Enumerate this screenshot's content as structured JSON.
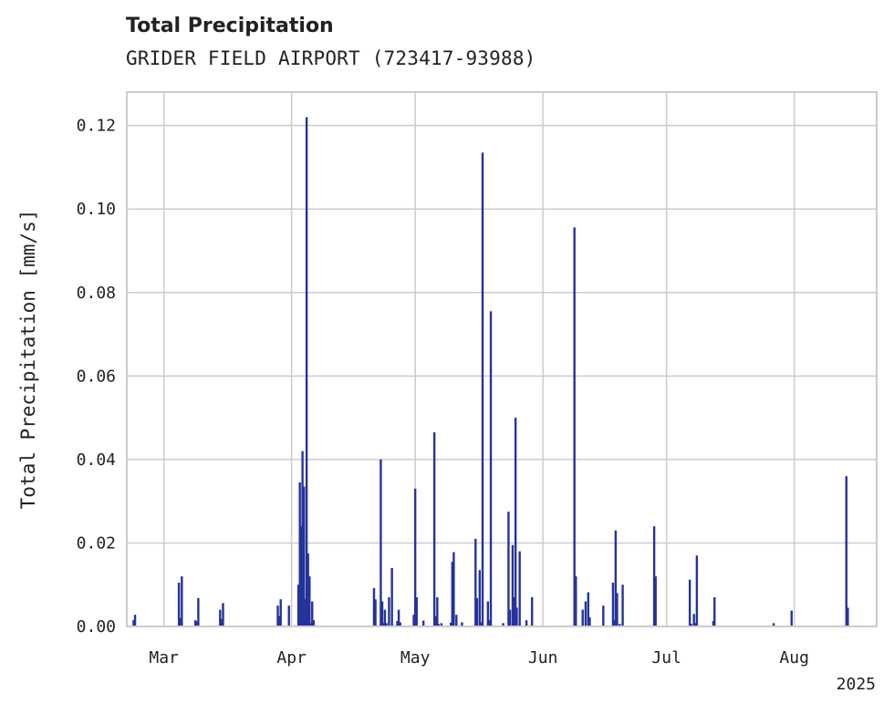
{
  "chart_data": {
    "type": "bar",
    "title": "Total Precipitation",
    "subtitle": "GRIDER FIELD AIRPORT (723417-93988)",
    "ylabel": "Total Precipitation [mm/s]",
    "xlabel": "",
    "x_axis_year_label": "2025",
    "ylim": [
      0,
      0.128
    ],
    "xlim": [
      "2025-02-20",
      "2025-08-21"
    ],
    "yticks": [
      {
        "value": 0.0,
        "label": "0.00"
      },
      {
        "value": 0.02,
        "label": "0.02"
      },
      {
        "value": 0.04,
        "label": "0.04"
      },
      {
        "value": 0.06,
        "label": "0.06"
      },
      {
        "value": 0.08,
        "label": "0.08"
      },
      {
        "value": 0.1,
        "label": "0.10"
      },
      {
        "value": 0.12,
        "label": "0.12"
      }
    ],
    "xticks": [
      {
        "date": "2025-03-01",
        "label": "Mar"
      },
      {
        "date": "2025-04-01",
        "label": "Apr"
      },
      {
        "date": "2025-05-01",
        "label": "May"
      },
      {
        "date": "2025-06-01",
        "label": "Jun"
      },
      {
        "date": "2025-07-01",
        "label": "Jul"
      },
      {
        "date": "2025-08-01",
        "label": "Aug"
      }
    ],
    "grid": true,
    "bar_color": "#26339a",
    "grid_color": "#cccccc",
    "x": [
      "2025-02-22",
      "2025-02-22",
      "2025-03-05",
      "2025-03-05",
      "2025-03-05",
      "2025-03-09",
      "2025-03-09",
      "2025-03-09",
      "2025-03-15",
      "2025-03-15",
      "2025-03-15",
      "2025-03-29",
      "2025-03-29",
      "2025-03-29",
      "2025-03-31",
      "2025-04-03",
      "2025-04-03",
      "2025-04-03",
      "2025-04-04",
      "2025-04-04",
      "2025-04-04",
      "2025-04-05",
      "2025-04-05",
      "2025-04-05",
      "2025-04-05",
      "2025-04-06",
      "2025-04-06",
      "2025-04-06",
      "2025-04-21",
      "2025-04-21",
      "2025-04-23",
      "2025-04-23",
      "2025-04-23",
      "2025-04-24",
      "2025-04-24",
      "2025-04-25",
      "2025-04-25",
      "2025-04-27",
      "2025-04-27",
      "2025-04-27",
      "2025-05-01",
      "2025-05-01",
      "2025-05-01",
      "2025-05-03",
      "2025-05-06",
      "2025-05-06",
      "2025-05-06",
      "2025-05-07",
      "2025-05-07",
      "2025-05-10",
      "2025-05-10",
      "2025-05-10",
      "2025-05-11",
      "2025-05-12",
      "2025-05-16",
      "2025-05-16",
      "2025-05-17",
      "2025-05-17",
      "2025-05-17",
      "2025-05-19",
      "2025-05-19",
      "2025-05-19",
      "2025-05-22",
      "2025-05-24",
      "2025-05-24",
      "2025-05-25",
      "2025-05-25",
      "2025-05-25",
      "2025-05-26",
      "2025-05-26",
      "2025-05-28",
      "2025-05-29",
      "2025-06-09",
      "2025-06-09",
      "2025-06-11",
      "2025-06-11",
      "2025-06-12",
      "2025-06-12",
      "2025-06-16",
      "2025-06-18",
      "2025-06-18",
      "2025-06-19",
      "2025-06-19",
      "2025-06-20",
      "2025-06-20",
      "2025-06-28",
      "2025-06-28",
      "2025-07-07",
      "2025-07-07",
      "2025-07-08",
      "2025-07-08",
      "2025-07-08",
      "2025-07-12",
      "2025-07-13",
      "2025-07-27",
      "2025-07-31",
      "2025-08-14",
      "2025-08-14"
    ],
    "values": [
      0.0015,
      0.0028,
      0.012,
      0.0105,
      0.002,
      0.0068,
      0.0015,
      0.0012,
      0.0056,
      0.004,
      0.0018,
      0.0065,
      0.005,
      0.0025,
      0.005,
      0.01,
      0.0345,
      0.024,
      0.042,
      0.0335,
      0.0065,
      0.122,
      0.0175,
      0.012,
      0.007,
      0.006,
      0.0015,
      0.0008,
      0.0092,
      0.0065,
      0.04,
      0.006,
      0.0008,
      0.004,
      0.0008,
      0.014,
      0.007,
      0.004,
      0.001,
      0.0013,
      0.033,
      0.007,
      0.0028,
      0.0014,
      0.007,
      0.0465,
      0.0025,
      0.0008,
      0.0006,
      0.0155,
      0.0178,
      0.0009,
      0.0028,
      0.001,
      0.021,
      0.0068,
      0.1135,
      0.0135,
      0.001,
      0.0755,
      0.006,
      0.0015,
      0.0008,
      0.0275,
      0.004,
      0.05,
      0.0195,
      0.007,
      0.018,
      0.0045,
      0.0015,
      0.007,
      0.0956,
      0.012,
      0.006,
      0.004,
      0.0082,
      0.0022,
      0.005,
      0.0105,
      0.0015,
      0.023,
      0.008,
      0.01,
      0.0006,
      0.024,
      0.012,
      0.0112,
      0.0006,
      0.017,
      0.003,
      0.0008,
      0.0013,
      0.007,
      0.0008,
      0.0038,
      0.036,
      0.0045
    ]
  }
}
